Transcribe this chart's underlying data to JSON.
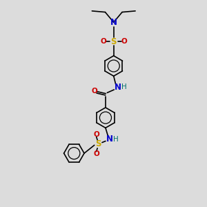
{
  "bg_color": "#dcdcdc",
  "atom_colors": {
    "C": "#000000",
    "N": "#0000cc",
    "O": "#cc0000",
    "S": "#ccaa00",
    "H": "#007070"
  },
  "line_color": "#000000",
  "line_width": 1.2,
  "figsize": [
    3.0,
    3.0
  ],
  "dpi": 100
}
